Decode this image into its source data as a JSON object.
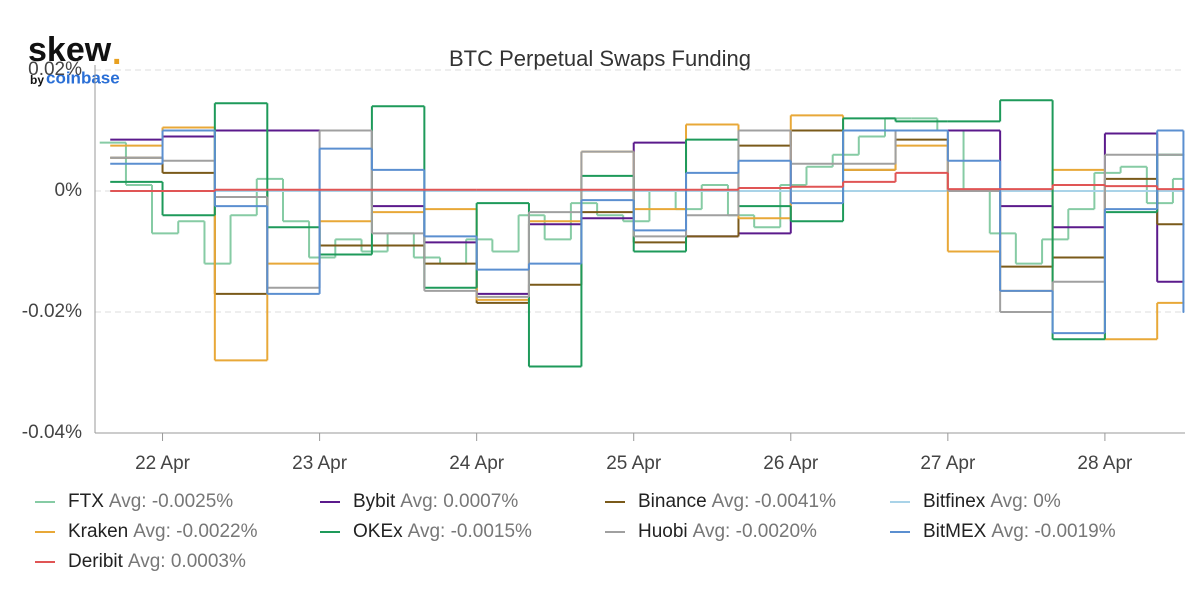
{
  "logo": {
    "name": "skew",
    "dot": ".",
    "by": "by",
    "brand": "coinbase"
  },
  "chart_data": {
    "type": "step-line",
    "title": "BTC Perpetual Swaps Funding",
    "xlim": [
      21.57,
      28.51
    ],
    "xticks": [
      {
        "value": 22,
        "label": "22 Apr"
      },
      {
        "value": 23,
        "label": "23 Apr"
      },
      {
        "value": 24,
        "label": "24 Apr"
      },
      {
        "value": 25,
        "label": "25 Apr"
      },
      {
        "value": 26,
        "label": "26 Apr"
      },
      {
        "value": 27,
        "label": "27 Apr"
      },
      {
        "value": 28,
        "label": "28 Apr"
      }
    ],
    "ylim": [
      -0.04,
      0.02
    ],
    "yticks": [
      {
        "value": -0.04,
        "label": "-0.04%"
      },
      {
        "value": -0.02,
        "label": "-0.02%"
      },
      {
        "value": 0,
        "label": "0%"
      },
      {
        "value": 0.02,
        "label": "0.02%"
      }
    ],
    "grid": true,
    "x": [
      21.667,
      22,
      22.333,
      22.667,
      23,
      23.333,
      23.667,
      24,
      24.333,
      24.667,
      25,
      25.333,
      25.667,
      26,
      26.333,
      26.667,
      27,
      27.333,
      27.667,
      28,
      28.333,
      28.5
    ],
    "series": [
      {
        "name": "FTX",
        "avg": "Avg: -0.0025%",
        "color": "#86cba4",
        "x": [
          21.6,
          21.767,
          21.933,
          22.1,
          22.267,
          22.433,
          22.6,
          22.767,
          22.933,
          23.1,
          23.267,
          23.433,
          23.6,
          23.767,
          23.933,
          24.1,
          24.267,
          24.433,
          24.6,
          24.767,
          24.933,
          25.1,
          25.267,
          25.433,
          25.6,
          25.767,
          25.933,
          26.1,
          26.267,
          26.433,
          26.6,
          26.767,
          26.933,
          27.1,
          27.267,
          27.433,
          27.6,
          27.767,
          27.933,
          28.1,
          28.267,
          28.433,
          28.5
        ],
        "values": [
          0.008,
          0.001,
          -0.007,
          -0.005,
          -0.012,
          -0.004,
          0.002,
          -0.005,
          -0.011,
          -0.008,
          -0.01,
          -0.007,
          -0.011,
          -0.012,
          -0.008,
          -0.01,
          -0.004,
          -0.008,
          -0.002,
          -0.004,
          -0.005,
          0,
          -0.003,
          0.001,
          -0.004,
          -0.006,
          0.001,
          0.004,
          0.006,
          0.009,
          0.012,
          0.012,
          0.01,
          0,
          -0.007,
          -0.012,
          -0.008,
          -0.003,
          0.003,
          0.004,
          -0.002,
          0.002,
          0.002
        ]
      },
      {
        "name": "Bybit",
        "avg": "Avg: 0.0007%",
        "color": "#5b1a8c",
        "values": [
          0.0085,
          0.009,
          0.01,
          0.01,
          0.01,
          -0.0025,
          -0.0085,
          -0.017,
          -0.0055,
          -0.0045,
          0.008,
          -0.0075,
          -0.007,
          0.01,
          0.01,
          0.01,
          0.01,
          -0.0025,
          -0.006,
          0.0095,
          -0.015,
          -0.015
        ]
      },
      {
        "name": "Binance",
        "avg": "Avg: -0.0041%",
        "color": "#7a5a1a",
        "values": [
          0.0055,
          0.003,
          -0.017,
          0,
          -0.009,
          -0.009,
          -0.012,
          -0.0185,
          -0.0155,
          -0.0035,
          -0.0085,
          -0.0075,
          0.0075,
          0.01,
          0.0035,
          0.0085,
          0,
          -0.0125,
          -0.011,
          0.002,
          -0.0055,
          -0.0055
        ]
      },
      {
        "name": "Bitfinex",
        "avg": "Avg: 0%",
        "color": "#a9d3e8",
        "x": [
          21.667,
          28.5
        ],
        "values": [
          0,
          0
        ]
      },
      {
        "name": "Kraken",
        "avg": "Avg: -0.0022%",
        "color": "#e8a838",
        "values": [
          0.0075,
          0.0105,
          -0.028,
          -0.012,
          -0.005,
          -0.0035,
          -0.003,
          -0.018,
          -0.005,
          0.0065,
          -0.003,
          0.011,
          -0.0045,
          0.0125,
          0.0035,
          0.0075,
          -0.01,
          -0.0165,
          0.0035,
          -0.0245,
          -0.0185,
          -0.0185
        ]
      },
      {
        "name": "OKEx",
        "avg": "Avg: -0.0015%",
        "color": "#1e9a5a",
        "values": [
          0.0015,
          -0.004,
          0.0145,
          -0.006,
          -0.0105,
          0.014,
          -0.016,
          -0.002,
          -0.029,
          0.0025,
          -0.01,
          0.0085,
          -0.0025,
          -0.005,
          0.012,
          0.0115,
          0.0115,
          0.015,
          -0.0245,
          -0.0035,
          0.006,
          0.006
        ]
      },
      {
        "name": "Huobi",
        "avg": "Avg: -0.0020%",
        "color": "#a0a0a0",
        "values": [
          0.0055,
          0.005,
          -0.001,
          -0.016,
          0.01,
          -0.007,
          -0.0165,
          -0.0175,
          -0.0035,
          0.0065,
          -0.0075,
          -0.004,
          0.01,
          0.0045,
          0.0045,
          0.01,
          0,
          -0.02,
          -0.015,
          0.006,
          0.006,
          0.006
        ]
      },
      {
        "name": "BitMEX",
        "avg": "Avg: -0.0019%",
        "color": "#5b8fd0",
        "values": [
          0.0045,
          0.01,
          -0.0025,
          -0.017,
          0.007,
          0.0035,
          -0.0075,
          -0.013,
          -0.012,
          -0.0015,
          -0.0065,
          0.003,
          0.005,
          -0.002,
          0.01,
          0.01,
          0.005,
          -0.0165,
          -0.0235,
          -0.003,
          0.01,
          -0.02
        ]
      },
      {
        "name": "Deribit",
        "avg": "Avg: 0.0003%",
        "color": "#e05555",
        "values": [
          0,
          0,
          0.0002,
          0.0002,
          0.0002,
          0.0002,
          0.0002,
          0.0002,
          0.0002,
          0.0002,
          0.0002,
          0.0002,
          0.0005,
          0.0007,
          0.0015,
          0.003,
          0.0003,
          0.0003,
          0.001,
          0.0008,
          0.0003,
          0.0003
        ]
      }
    ]
  }
}
